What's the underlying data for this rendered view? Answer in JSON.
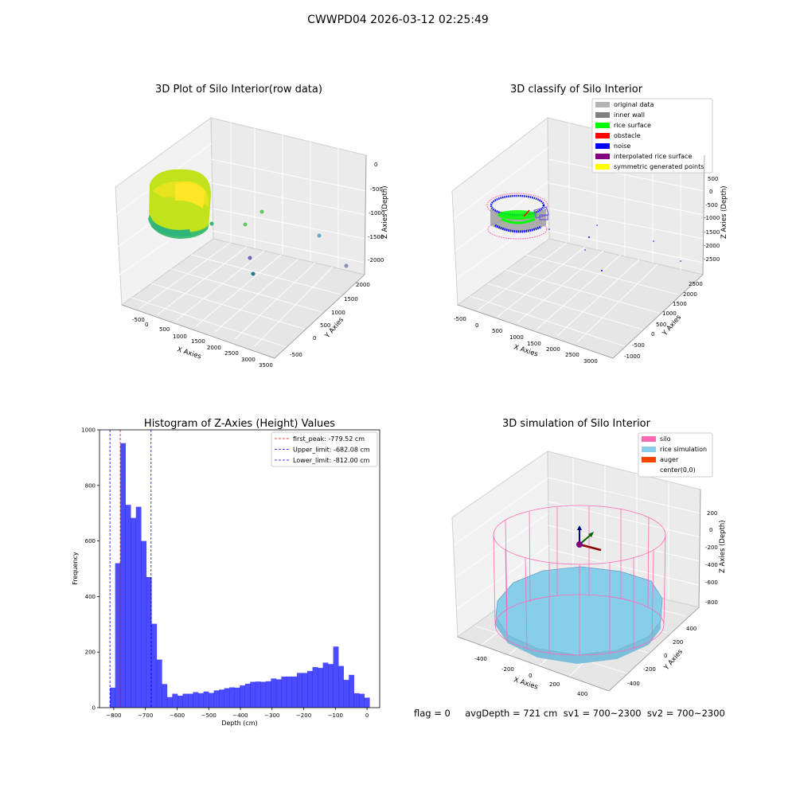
{
  "figure_title": "CWWPD04 2026-03-12 02:25:49",
  "panel_raw": {
    "title": "3D Plot of Silo Interior(row data)",
    "xlabel": "X Axies",
    "ylabel": "Y Axies",
    "zlabel": "Z Axies (Depth)",
    "xticks": [
      "-500",
      "0",
      "500",
      "1000",
      "1500",
      "2000",
      "2500",
      "3000",
      "3500"
    ],
    "yticks": [
      "-500",
      "0",
      "500",
      "1000",
      "1500",
      "2000"
    ],
    "zticks": [
      "0",
      "-500",
      "-1000",
      "-1500",
      "-2000"
    ]
  },
  "panel_classify": {
    "title": "3D classify of Silo Interior",
    "xlabel": "X Axies",
    "ylabel": "Y Axies",
    "zlabel": "Z Axies (Depth)",
    "xticks": [
      "-500",
      "0",
      "500",
      "1000",
      "1500",
      "2000",
      "2500",
      "3000"
    ],
    "yticks": [
      "-1000",
      "-500",
      "0",
      "500",
      "1000",
      "1500",
      "2000",
      "2500"
    ],
    "zticks": [
      "500",
      "0",
      "-500",
      "-1000",
      "-1500",
      "-2000",
      "-2500"
    ],
    "legend": [
      {
        "label": "original data",
        "color": "#b3b3b3"
      },
      {
        "label": "inner wall",
        "color": "#808080"
      },
      {
        "label": "rice surface",
        "color": "#00ff00"
      },
      {
        "label": "obstacle",
        "color": "#ff0000"
      },
      {
        "label": "noise",
        "color": "#0000ff"
      },
      {
        "label": "interpolated rice surface",
        "color": "#800080"
      },
      {
        "label": "symmetric generated points",
        "color": "#ffff00"
      }
    ]
  },
  "panel_sim": {
    "title": "3D simulation of Silo Interior",
    "xlabel": "X Axies",
    "ylabel": "Y Axies",
    "zlabel": "Z Axies (Depth)",
    "xticks": [
      "-400",
      "-200",
      "0",
      "200",
      "400"
    ],
    "yticks": [
      "-400",
      "-200",
      "0",
      "200",
      "400"
    ],
    "zticks": [
      "200",
      "0",
      "-200",
      "-400",
      "-600",
      "-800"
    ],
    "legend": [
      {
        "label": "silo",
        "color": "#ff69b4"
      },
      {
        "label": "rice simulation",
        "color": "#87ceeb"
      },
      {
        "label": "auger",
        "color": "#ff4500"
      },
      {
        "label": "center(0,0)",
        "color": "#ffffff"
      }
    ]
  },
  "status_line": "flag = 0     avgDepth = 721 cm  sv1 = 700~2300  sv2 = 700~2300",
  "chart_data": [
    {
      "type": "bar",
      "title": "Histogram of Z-Axies (Height) Values",
      "xlabel": "Depth (cm)",
      "ylabel": "Frequency",
      "xlim": [
        -845,
        40
      ],
      "ylim": [
        0,
        1000
      ],
      "xticks": [
        -800,
        -700,
        -600,
        -500,
        -400,
        -300,
        -200,
        -100,
        0
      ],
      "yticks": [
        0,
        200,
        400,
        600,
        800,
        1000
      ],
      "bin_width": 16.4,
      "bin_start": -812,
      "values": [
        72,
        520,
        952,
        730,
        683,
        723,
        600,
        470,
        302,
        173,
        85,
        38,
        50,
        43,
        50,
        50,
        56,
        52,
        58,
        53,
        62,
        65,
        70,
        73,
        72,
        80,
        86,
        93,
        94,
        93,
        95,
        105,
        102,
        112,
        112,
        112,
        125,
        125,
        132,
        146,
        143,
        162,
        157,
        220,
        150,
        100,
        118,
        52,
        50,
        36
      ],
      "bar_color": "#0000ff",
      "bar_alpha": 0.7,
      "grid": false,
      "legend_position": "top-right",
      "lines": [
        {
          "label": "first_peak: -779.52 cm",
          "x": -779.52,
          "color": "#ff0000"
        },
        {
          "label": "Upper_limit: -682.08 cm",
          "x": -682.08,
          "color": "#0000ff"
        },
        {
          "label": "Lower_limit: -812.00 cm",
          "x": -812.0,
          "color": "#0000ff"
        }
      ]
    }
  ]
}
